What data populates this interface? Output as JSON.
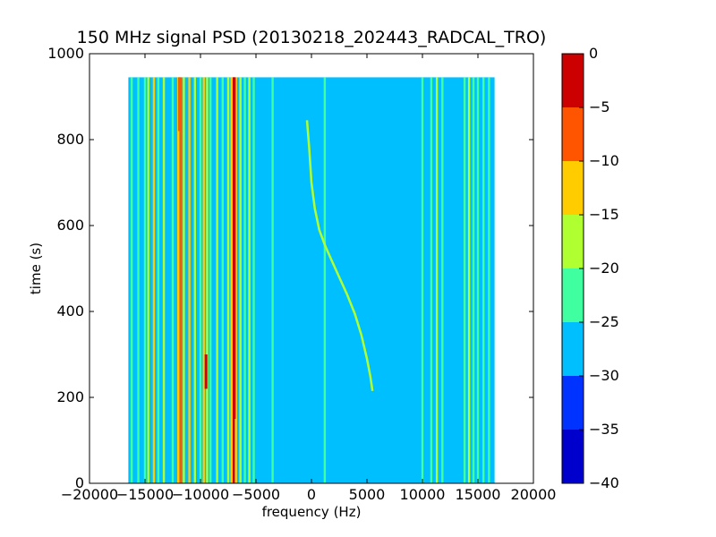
{
  "chart_data": {
    "type": "heatmap",
    "title": "150 MHz signal PSD (20130218_202443_RADCAL_TRO)",
    "xlabel": "frequency (Hz)",
    "ylabel": "time (s)",
    "xlim": [
      -20000,
      20000
    ],
    "ylim": [
      0,
      1000
    ],
    "x_ticks": [
      -20000,
      -15000,
      -10000,
      -5000,
      0,
      5000,
      10000,
      15000,
      20000
    ],
    "x_tick_labels": [
      "−20000",
      "−15000",
      "−10000",
      "−5000",
      "0",
      "5000",
      "10000",
      "15000",
      "20000"
    ],
    "y_ticks": [
      0,
      200,
      400,
      600,
      800,
      1000
    ],
    "y_tick_labels": [
      "0",
      "200",
      "400",
      "600",
      "800",
      "1000"
    ],
    "data_extent": {
      "freq": [
        -16500,
        16500
      ],
      "time": [
        0,
        945
      ]
    },
    "background_level": -27.5,
    "colorbar": {
      "levels": [
        -40,
        -35,
        -30,
        -25,
        -20,
        -15,
        -10,
        -5,
        0
      ],
      "tick_labels": [
        "0",
        "−5",
        "−10",
        "−15",
        "−20",
        "−25",
        "−30",
        "−35",
        "−40"
      ],
      "colors": [
        "#0000cc",
        "#0033ff",
        "#00bfff",
        "#40ffa0",
        "#b0ff30",
        "#ffcc00",
        "#ff5500",
        "#cc0000"
      ]
    },
    "vertical_lines": [
      {
        "freq": -16200,
        "level": -22.5
      },
      {
        "freq": -15600,
        "level": -22.5
      },
      {
        "freq": -15000,
        "level": -22.5
      },
      {
        "freq": -14700,
        "level": -17.5
      },
      {
        "freq": -14200,
        "level": -12.5
      },
      {
        "freq": -13800,
        "level": -22.5
      },
      {
        "freq": -13300,
        "level": -17.5
      },
      {
        "freq": -12500,
        "level": -22.5
      },
      {
        "freq": -12000,
        "level": -12.5
      },
      {
        "freq": -11800,
        "level": -7.5
      },
      {
        "freq": -11500,
        "level": -17.5
      },
      {
        "freq": -11000,
        "level": -12.5
      },
      {
        "freq": -10500,
        "level": -17.5
      },
      {
        "freq": -10000,
        "level": -22.5
      },
      {
        "freq": -9700,
        "level": -12.5
      },
      {
        "freq": -9400,
        "level": -17.5
      },
      {
        "freq": -9100,
        "level": -22.5
      },
      {
        "freq": -8500,
        "level": -17.5
      },
      {
        "freq": -8000,
        "level": -22.5
      },
      {
        "freq": -7500,
        "level": -17.5
      },
      {
        "freq": -7200,
        "level": -12.5
      },
      {
        "freq": -7000,
        "level": -2.5
      },
      {
        "freq": -6800,
        "level": -12.5
      },
      {
        "freq": -6400,
        "level": -17.5
      },
      {
        "freq": -6000,
        "level": -22.5
      },
      {
        "freq": -5600,
        "level": -17.5
      },
      {
        "freq": -5200,
        "level": -22.5
      },
      {
        "freq": -3500,
        "level": -22.5
      },
      {
        "freq": 1200,
        "level": -22.5
      },
      {
        "freq": 10000,
        "level": -22.5
      },
      {
        "freq": 10800,
        "level": -22.5
      },
      {
        "freq": 11300,
        "level": -17.5
      },
      {
        "freq": 11800,
        "level": -22.5
      },
      {
        "freq": 13800,
        "level": -22.5
      },
      {
        "freq": 14200,
        "level": -17.5
      },
      {
        "freq": 14600,
        "level": -22.5
      },
      {
        "freq": 15000,
        "level": -22.5
      },
      {
        "freq": 15500,
        "level": -22.5
      },
      {
        "freq": 16000,
        "level": -22.5
      }
    ],
    "hot_segments": [
      {
        "freq": -9500,
        "time": [
          220,
          300
        ],
        "level": -2.5
      },
      {
        "freq": -11900,
        "time": [
          820,
          945
        ],
        "level": -7.5
      },
      {
        "freq": -6950,
        "time": [
          150,
          945
        ],
        "level": -2.5
      }
    ],
    "signal_track": {
      "level": -17.5,
      "points": [
        [
          -400,
          845
        ],
        [
          -200,
          780
        ],
        [
          0,
          700
        ],
        [
          300,
          640
        ],
        [
          700,
          590
        ],
        [
          1200,
          555
        ],
        [
          1800,
          520
        ],
        [
          2500,
          480
        ],
        [
          3200,
          440
        ],
        [
          3900,
          395
        ],
        [
          4500,
          345
        ],
        [
          5000,
          290
        ],
        [
          5300,
          250
        ],
        [
          5500,
          215
        ]
      ]
    }
  }
}
